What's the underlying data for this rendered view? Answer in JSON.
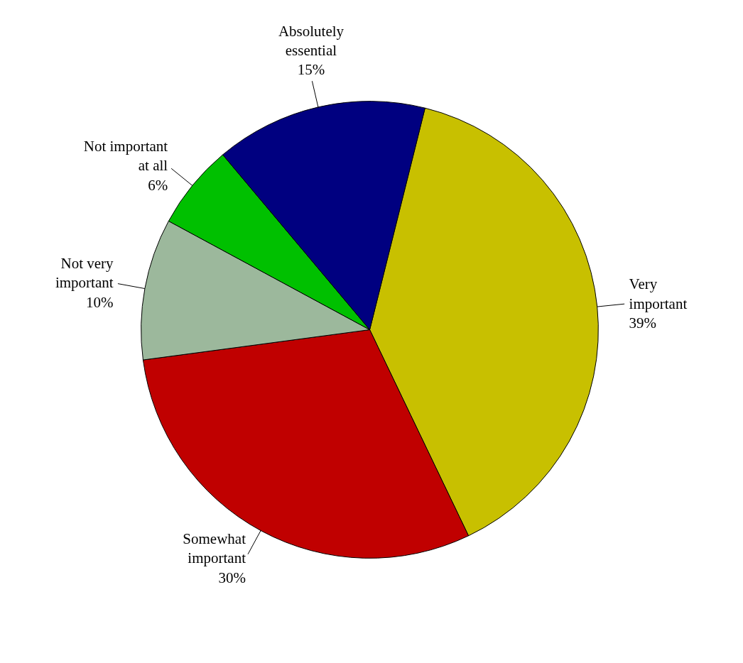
{
  "chart_data": {
    "type": "pie",
    "categories": [
      "Very important",
      "Somewhat important",
      "Not very important",
      "Not important at all",
      "Absolutely essential"
    ],
    "values": [
      39,
      30,
      10,
      6,
      15
    ],
    "value_labels": [
      "39%",
      "30%",
      "10%",
      "6%",
      "15%"
    ],
    "colors": [
      "#c8c000",
      "#c00000",
      "#9cb89c",
      "#00c000",
      "#000080"
    ]
  }
}
